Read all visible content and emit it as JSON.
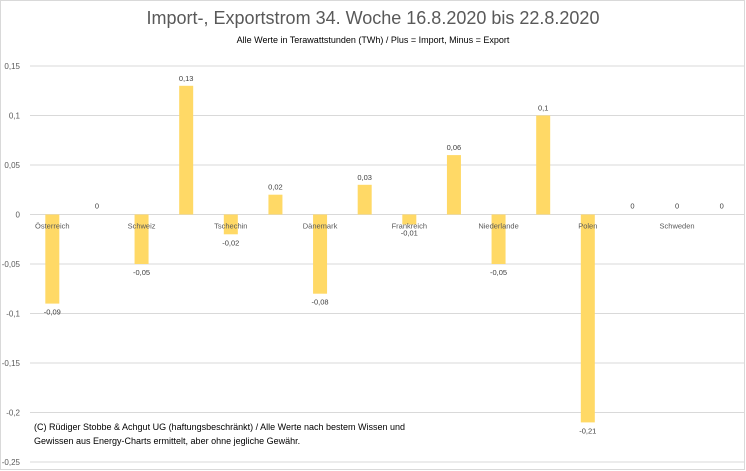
{
  "chart_data": {
    "type": "bar",
    "title": "Import-, Exportstrom 34. Woche 16.8.2020 bis 22.8.2020",
    "subtitle": "Alle Werte in Terawattstunden (TWh) / Plus = Import, Minus = Export",
    "xlabel": "",
    "ylabel": "",
    "ylim": [
      -0.25,
      0.15
    ],
    "yticks": [
      0.15,
      0.1,
      0.05,
      0,
      -0.05,
      -0.1,
      -0.15,
      -0.2,
      -0.25
    ],
    "ytick_labels": [
      "0,15",
      "0,1",
      "0,05",
      "0",
      "-0,05",
      "-0,1",
      "-0,15",
      "-0,2",
      "-0,25"
    ],
    "grid": true,
    "bar_color": "#FFD966",
    "categories": [
      "Österreich",
      "Schweiz",
      "Tschechin",
      "Dänemark",
      "Frankreich",
      "Niederlande",
      "Polen",
      "Schweden"
    ],
    "series": [
      {
        "name": "Export",
        "values": [
          -0.09,
          -0.05,
          -0.02,
          -0.08,
          -0.01,
          -0.05,
          -0.21,
          0
        ],
        "labels": [
          "-0,09",
          "-0,05",
          "-0,02",
          "-0,08",
          "-0,01",
          "-0,05",
          "-0,21",
          "0"
        ]
      },
      {
        "name": "Import",
        "values": [
          0,
          0.13,
          0.02,
          0.03,
          0.06,
          0.1,
          0,
          0
        ],
        "labels": [
          "0",
          "0,13",
          "0,02",
          "0,03",
          "0,06",
          "0,1",
          "0",
          "0"
        ]
      }
    ]
  },
  "footnote": {
    "line1": "(C) Rüdiger Stobbe & Achgut UG (haftungsbeschränkt) / Alle Werte nach bestem Wissen und",
    "line2": "Gewissen aus Energy-Charts ermittelt, aber ohne jegliche Gewähr."
  }
}
